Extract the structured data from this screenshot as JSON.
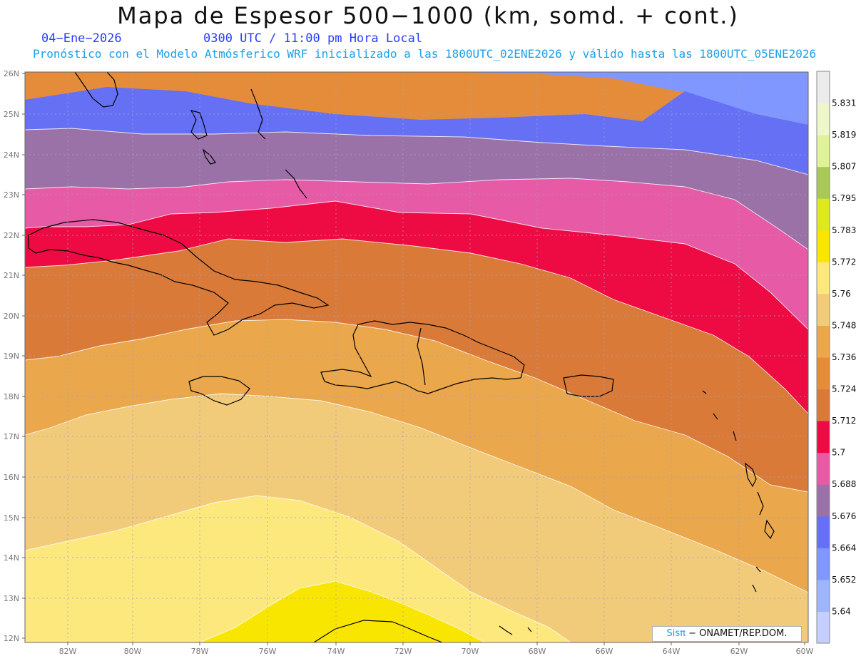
{
  "title": "Mapa de Espesor 500−1000 (km, somd. + cont.)",
  "date": "04−Ene−2026",
  "time": "0300 UTC / 11:00 pm Hora Local",
  "subtitle": "Pronóstico con el Modelo Atmósferico WRF inicializado a las 1800UTC_02ENE2026 y válido hasta las  1800UTC_05ENE2026",
  "lat_labels": [
    "26N",
    "25N",
    "24N",
    "23N",
    "22N",
    "21N",
    "20N",
    "19N",
    "18N",
    "17N",
    "16N",
    "15N",
    "14N",
    "13N",
    "12N"
  ],
  "lon_labels": [
    "82W",
    "80W",
    "78W",
    "76W",
    "74W",
    "72W",
    "70W",
    "68W",
    "66W",
    "64W",
    "62W",
    "60W"
  ],
  "colorbar": {
    "levels": [
      "5.64",
      "5.652",
      "5.664",
      "5.676",
      "5.688",
      "5.7",
      "5.712",
      "5.724",
      "5.736",
      "5.748",
      "5.76",
      "5.772",
      "5.783",
      "5.795",
      "5.807",
      "5.819",
      "5.831"
    ],
    "colors": [
      "#c4cfff",
      "#9eb4ff",
      "#7f97ff",
      "#6670f5",
      "#9a72a8",
      "#e65aa6",
      "#ee0a42",
      "#d97a38",
      "#e58c3a",
      "#eaa74c",
      "#f2cb7a",
      "#fde87e",
      "#f9e600",
      "#dde81e",
      "#a8c957",
      "#dff29a",
      "#eef7cc",
      "#ececec"
    ]
  },
  "credit": {
    "brand": "Sisπ",
    "text": " − ONAMET/REP.DOM."
  }
}
